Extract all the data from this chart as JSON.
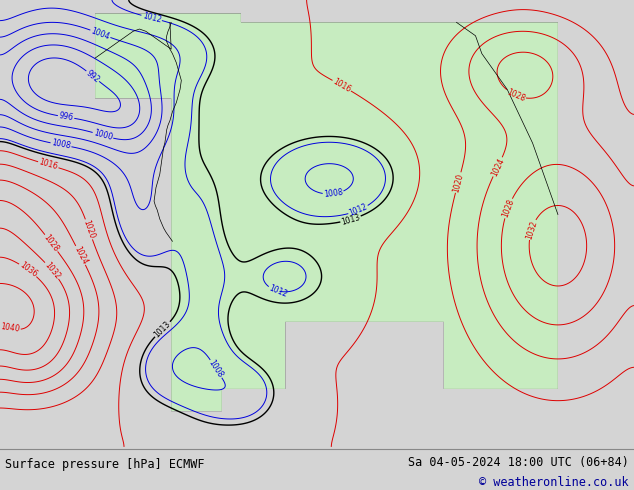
{
  "title_left": "Surface pressure [hPa] ECMWF",
  "title_right": "Sa 04-05-2024 18:00 UTC (06+84)",
  "copyright": "© weatheronline.co.uk",
  "bg_color": "#d4d4d4",
  "land_color_r": 0.784,
  "land_color_g": 0.929,
  "land_color_b": 0.753,
  "contour_color_low": "#0000dd",
  "contour_color_high": "#dd0000",
  "contour_color_mid": "#000000",
  "figsize": [
    6.34,
    4.9
  ],
  "dpi": 100,
  "footer_bg": "#ffffff",
  "label_fontsize": 5.5
}
